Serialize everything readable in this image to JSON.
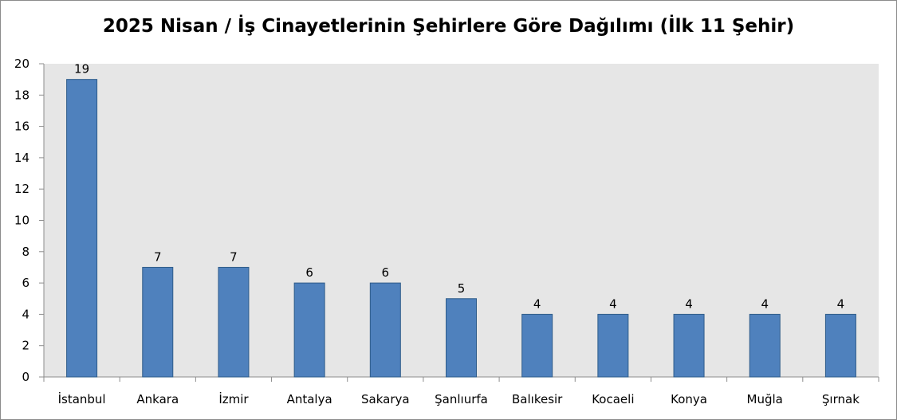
{
  "chart_data": {
    "type": "bar",
    "title": "2025 Nisan / İş Cinayetlerinin Şehirlere Göre Dağılımı (İlk 11 Şehir)",
    "xlabel": "",
    "ylabel": "",
    "categories": [
      "İstanbul",
      "Ankara",
      "İzmir",
      "Antalya",
      "Sakarya",
      "Şanlıurfa",
      "Balıkesir",
      "Kocaeli",
      "Konya",
      "Muğla",
      "Şırnak"
    ],
    "values": [
      19,
      7,
      7,
      6,
      6,
      5,
      4,
      4,
      4,
      4,
      4
    ],
    "ylim": [
      0,
      20
    ],
    "yticks": [
      0,
      2,
      4,
      6,
      8,
      10,
      12,
      14,
      16,
      18,
      20
    ],
    "data_labels": true,
    "grid": false,
    "legend": "none",
    "colors": {
      "bar_fill": "#4f81bd",
      "bar_stroke": "#2e5c8a",
      "plot_background": "#e6e6e6",
      "axis": "#8c8c8c"
    }
  }
}
